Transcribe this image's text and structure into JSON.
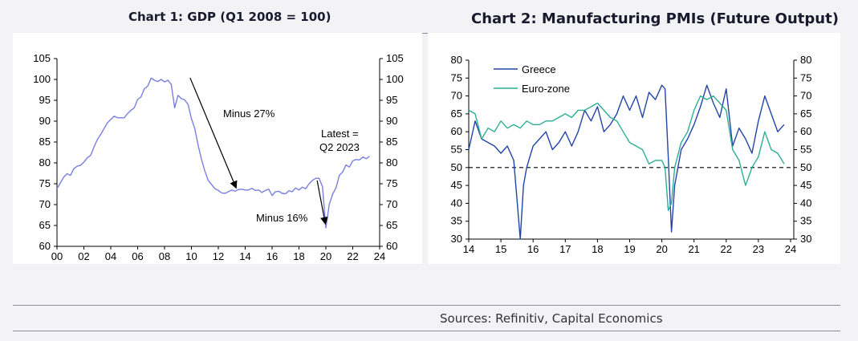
{
  "chart_data": [
    {
      "type": "line",
      "title": "Chart 1: GDP (Q1 2008 = 100)",
      "xlim": [
        2000,
        2024
      ],
      "ylim": [
        60,
        105
      ],
      "x_ticks": [
        "00",
        "02",
        "04",
        "06",
        "08",
        "10",
        "12",
        "14",
        "16",
        "18",
        "20",
        "22",
        "24"
      ],
      "y_ticks": [
        "60",
        "65",
        "70",
        "75",
        "80",
        "85",
        "90",
        "95",
        "100",
        "105"
      ],
      "y_right_axis": true,
      "grid": false,
      "color": "#7b7fe0",
      "series": [
        {
          "x": [
            2000.0,
            2000.25,
            2000.5,
            2000.75,
            2001.0,
            2001.25,
            2001.5,
            2001.75,
            2002.0,
            2002.25,
            2002.5,
            2002.75,
            2003.0,
            2003.25,
            2003.5,
            2003.75,
            2004.0,
            2004.25,
            2004.5,
            2004.75,
            2005.0,
            2005.25,
            2005.5,
            2005.75,
            2006.0,
            2006.25,
            2006.5,
            2006.75,
            2007.0,
            2007.25,
            2007.5,
            2007.75,
            2008.0,
            2008.25,
            2008.5,
            2008.75,
            2009.0,
            2009.25,
            2009.5,
            2009.75,
            2010.0,
            2010.25,
            2010.5,
            2010.75,
            2011.0,
            2011.25,
            2011.5,
            2011.75,
            2012.0,
            2012.25,
            2012.5,
            2012.75,
            2013.0,
            2013.25,
            2013.5,
            2013.75,
            2014.0,
            2014.25,
            2014.5,
            2014.75,
            2015.0,
            2015.25,
            2015.5,
            2015.75,
            2016.0,
            2016.25,
            2016.5,
            2016.75,
            2017.0,
            2017.25,
            2017.5,
            2017.75,
            2018.0,
            2018.25,
            2018.5,
            2018.75,
            2019.0,
            2019.25,
            2019.5,
            2019.75,
            2020.0,
            2020.25,
            2020.5,
            2020.75,
            2021.0,
            2021.25,
            2021.5,
            2021.75,
            2022.0,
            2022.25,
            2022.5,
            2022.75,
            2023.0,
            2023.25
          ],
          "values": [
            73.8,
            75.2,
            76.6,
            77.4,
            77.0,
            78.6,
            79.2,
            79.4,
            80.2,
            81.2,
            81.8,
            83.8,
            85.6,
            86.8,
            88.2,
            89.6,
            90.4,
            91.2,
            90.8,
            90.8,
            90.8,
            91.8,
            92.6,
            93.2,
            95.2,
            95.8,
            97.8,
            98.4,
            100.3,
            99.8,
            99.5,
            100.0,
            99.4,
            99.8,
            98.8,
            93.2,
            96.2,
            95.4,
            95.1,
            94.0,
            90.6,
            88.2,
            84.2,
            80.8,
            78.0,
            75.8,
            74.8,
            73.8,
            73.4,
            72.8,
            72.7,
            73.1,
            73.5,
            73.2,
            73.6,
            73.7,
            73.5,
            73.5,
            73.9,
            73.4,
            73.5,
            72.9,
            73.4,
            73.7,
            72.2,
            73.1,
            73.2,
            72.7,
            72.6,
            73.3,
            73.1,
            74.0,
            73.5,
            74.2,
            73.8,
            75.0,
            75.8,
            76.3,
            76.3,
            74.3,
            64.4,
            70.0,
            72.5,
            74.0,
            77.0,
            77.8,
            79.5,
            79.0,
            80.5,
            80.8,
            80.7,
            81.4,
            81.0,
            81.6
          ]
        }
      ],
      "annotations": [
        {
          "text": "Minus 27%"
        },
        {
          "text": "Latest ="
        },
        {
          "text": "Q2 2023"
        },
        {
          "text": "Minus 16%"
        }
      ]
    },
    {
      "type": "line",
      "title": "Chart 2: Manufacturing PMIs (Future Output)",
      "xlim": [
        2014,
        2024.1
      ],
      "ylim": [
        30,
        80
      ],
      "x_ticks": [
        "14",
        "15",
        "16",
        "17",
        "18",
        "19",
        "20",
        "21",
        "22",
        "23",
        "24"
      ],
      "y_ticks": [
        "30",
        "35",
        "40",
        "45",
        "50",
        "55",
        "60",
        "65",
        "70",
        "75",
        "80"
      ],
      "y_right_axis": true,
      "grid": false,
      "legend": "top-left",
      "reference_line": {
        "y": 50,
        "style": "dashed"
      },
      "series": [
        {
          "name": "Greece",
          "color": "#2244aa",
          "x": [
            2014.0,
            2014.2,
            2014.4,
            2014.6,
            2014.8,
            2015.0,
            2015.2,
            2015.4,
            2015.6,
            2015.7,
            2015.8,
            2016.0,
            2016.2,
            2016.4,
            2016.6,
            2016.8,
            2017.0,
            2017.2,
            2017.4,
            2017.6,
            2017.8,
            2018.0,
            2018.2,
            2018.4,
            2018.6,
            2018.8,
            2019.0,
            2019.2,
            2019.4,
            2019.6,
            2019.8,
            2020.0,
            2020.1,
            2020.2,
            2020.3,
            2020.4,
            2020.6,
            2020.8,
            2021.0,
            2021.2,
            2021.4,
            2021.6,
            2021.8,
            2022.0,
            2022.2,
            2022.4,
            2022.6,
            2022.8,
            2023.0,
            2023.2,
            2023.4,
            2023.6,
            2023.8
          ],
          "values": [
            55,
            63,
            58,
            57,
            56,
            54,
            56,
            52,
            30,
            45,
            50,
            56,
            58,
            60,
            55,
            57,
            60,
            56,
            60,
            66,
            63,
            67,
            60,
            62,
            65,
            70,
            66,
            70,
            64,
            71,
            69,
            73,
            72,
            53,
            32,
            45,
            55,
            58,
            62,
            67,
            73,
            68,
            64,
            72,
            56,
            61,
            58,
            54,
            63,
            70,
            65,
            60,
            62
          ]
        },
        {
          "name": "Euro-zone",
          "color": "#2cae94",
          "x": [
            2014.0,
            2014.2,
            2014.4,
            2014.6,
            2014.8,
            2015.0,
            2015.2,
            2015.4,
            2015.6,
            2015.8,
            2016.0,
            2016.2,
            2016.4,
            2016.6,
            2016.8,
            2017.0,
            2017.2,
            2017.4,
            2017.6,
            2017.8,
            2018.0,
            2018.2,
            2018.4,
            2018.6,
            2018.8,
            2019.0,
            2019.2,
            2019.4,
            2019.6,
            2019.8,
            2020.0,
            2020.1,
            2020.2,
            2020.3,
            2020.4,
            2020.6,
            2020.8,
            2021.0,
            2021.2,
            2021.4,
            2021.6,
            2021.8,
            2022.0,
            2022.2,
            2022.4,
            2022.6,
            2022.8,
            2023.0,
            2023.2,
            2023.4,
            2023.6,
            2023.8
          ],
          "values": [
            66,
            65,
            58,
            61,
            60,
            63,
            61,
            62,
            61,
            63,
            62,
            62,
            63,
            63,
            64,
            65,
            64,
            66,
            66,
            67,
            68,
            66,
            64,
            63,
            60,
            57,
            56,
            55,
            51,
            52,
            52,
            50,
            38,
            40,
            50,
            57,
            60,
            66,
            70,
            69,
            70,
            68,
            66,
            55,
            52,
            45,
            50,
            53,
            60,
            55,
            54,
            51
          ]
        }
      ]
    }
  ],
  "footer": {
    "sources": "Sources: Refinitiv, Capital Economics"
  }
}
